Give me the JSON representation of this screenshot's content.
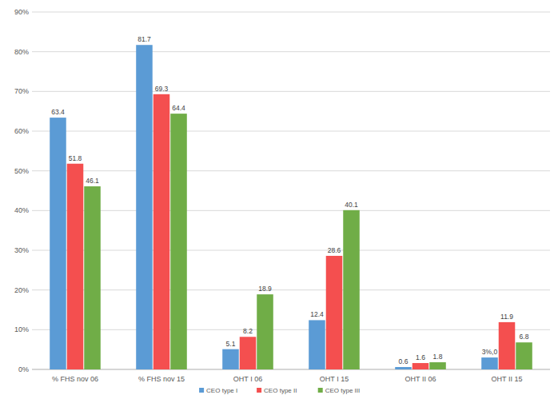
{
  "chart_data": {
    "type": "bar",
    "categories": [
      "% FHS nov 06",
      "% FHS nov 15",
      "OHT I 06",
      "OHT I 15",
      "OHT II 06",
      "OHT II 15"
    ],
    "series": [
      {
        "name": "CEO type I",
        "color": "#5b9bd5",
        "values": [
          63.4,
          81.7,
          5.1,
          12.4,
          0.6,
          3.0
        ],
        "value_labels": [
          "63.4",
          "81.7",
          "5.1",
          "12.4",
          "0.6",
          "3%,0"
        ]
      },
      {
        "name": "CEO type II",
        "color": "#f44f4f",
        "values": [
          51.8,
          69.3,
          8.2,
          28.6,
          1.6,
          11.9
        ]
      },
      {
        "name": "CEO type III",
        "color": "#70ad47",
        "values": [
          46.1,
          64.4,
          18.9,
          40.1,
          1.8,
          6.8
        ]
      }
    ],
    "ylim": [
      0,
      90
    ],
    "yticks": [
      {
        "value": 0,
        "label": "0%"
      },
      {
        "value": 10,
        "label": "10%"
      },
      {
        "value": 20,
        "label": "20%"
      },
      {
        "value": 30,
        "label": "30%"
      },
      {
        "value": 40,
        "label": "40%"
      },
      {
        "value": 50,
        "label": "50%"
      },
      {
        "value": 60,
        "label": "60%"
      },
      {
        "value": 70,
        "label": "70%"
      },
      {
        "value": 80,
        "label": "80%"
      },
      {
        "value": 90,
        "label": "90%"
      }
    ],
    "grid": true,
    "legend": "bottom",
    "data_labels": true
  }
}
